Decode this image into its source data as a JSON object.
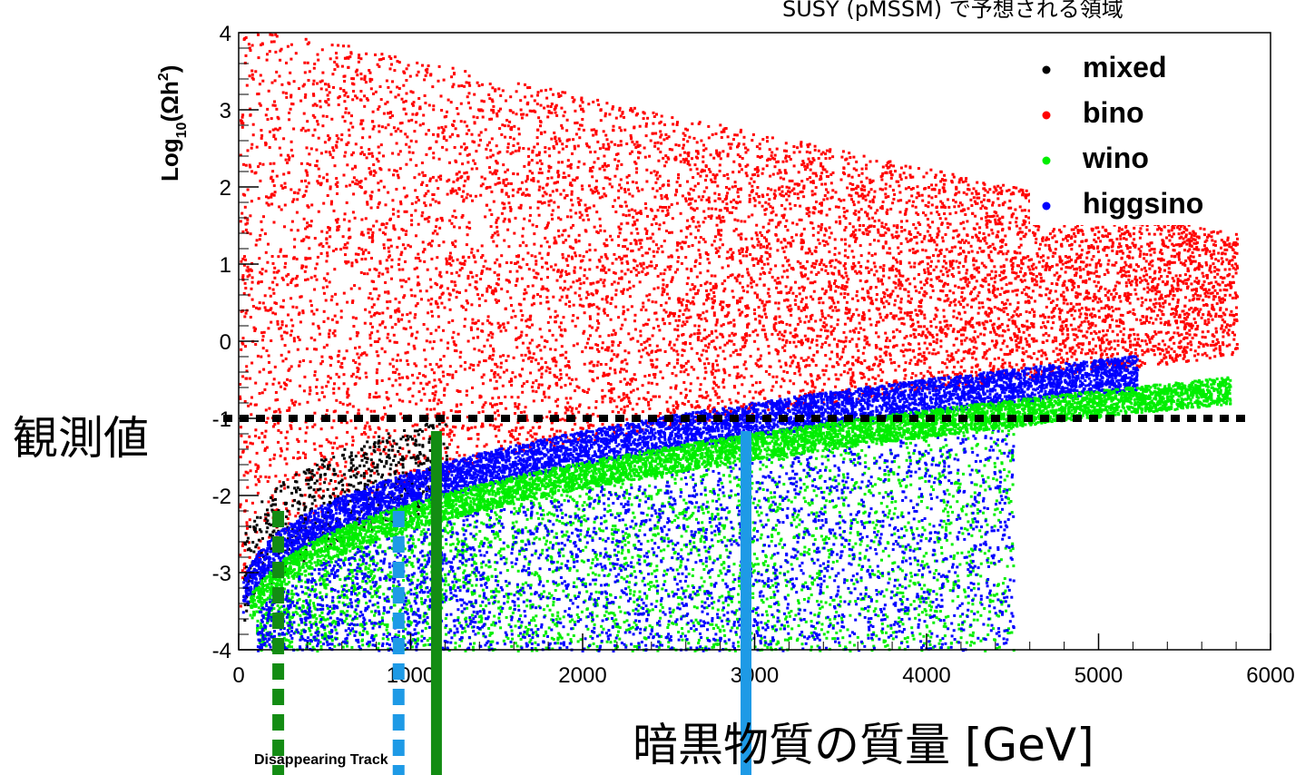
{
  "chart_data": {
    "type": "scatter",
    "title": "SUSY (pMSSM) で予想される領域",
    "ylabel_main": "Log",
    "ylabel_sub": "10",
    "ylabel_paren": "(Ωh",
    "ylabel_sup": "2",
    "ylabel_close": ")",
    "xlabel": "暗黒物質の質量 [GeV]",
    "xlim": [
      0,
      6000
    ],
    "ylim": [
      -4,
      4
    ],
    "x_ticks": [
      0,
      1000,
      2000,
      3000,
      4000,
      5000,
      6000
    ],
    "y_ticks": [
      -4,
      -3,
      -2,
      -1,
      0,
      1,
      2,
      3,
      4
    ],
    "legend_position": "top-right",
    "series": [
      {
        "name": "mixed",
        "color": "#000000"
      },
      {
        "name": "bino",
        "color": "#ff0000"
      },
      {
        "name": "wino",
        "color": "#00ee00"
      },
      {
        "name": "higgsino",
        "color": "#0000ff"
      }
    ],
    "observed_value": {
      "label": "観測値",
      "y": -1.0
    },
    "markers": [
      {
        "kind": "dashed",
        "color": "#138c13",
        "x": 230
      },
      {
        "kind": "dashed",
        "color": "#1e9ae6",
        "x": 930
      },
      {
        "kind": "solid",
        "color": "#138c13",
        "x": 1150
      },
      {
        "kind": "solid",
        "color": "#1e9ae6",
        "x": 2950
      }
    ],
    "annotation": "Disappearing Track"
  }
}
